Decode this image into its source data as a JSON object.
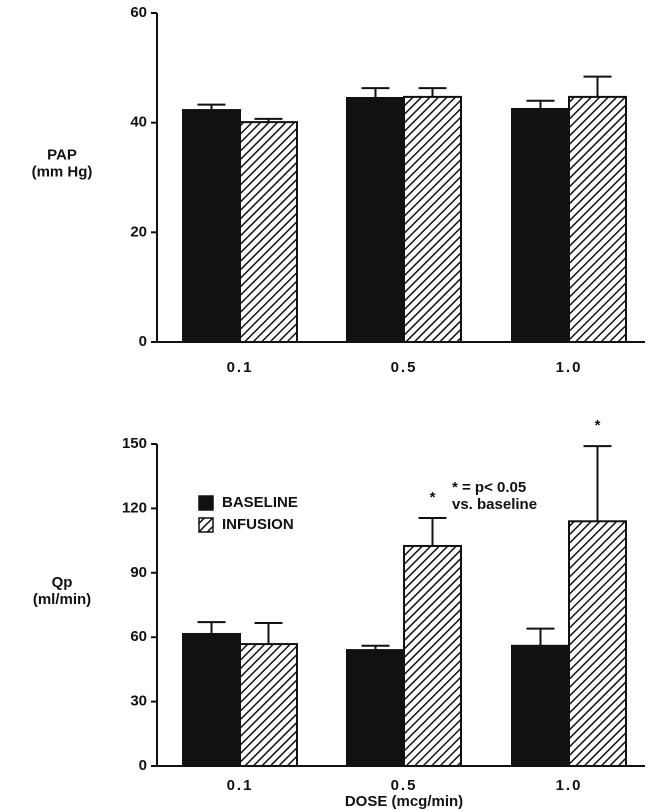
{
  "chart_data": [
    {
      "type": "bar",
      "ylabel": [
        "PAP",
        "(mm Hg)"
      ],
      "categories": [
        "0.1",
        "0.5",
        "1.0"
      ],
      "series": [
        {
          "color": "#111111",
          "fill": "solid",
          "values": [
            42.3,
            44.5,
            42.5
          ],
          "errors": [
            1.0,
            1.8,
            1.5
          ]
        },
        {
          "color": "#111111",
          "fill": "hatch",
          "values": [
            40.1,
            44.7,
            44.7
          ],
          "errors": [
            0.6,
            1.6,
            3.7
          ]
        }
      ],
      "ylim": [
        0,
        60
      ],
      "yticks": [
        0,
        20,
        40,
        60
      ],
      "legend": false
    },
    {
      "type": "bar",
      "ylabel": [
        "Qp",
        "(ml/min)"
      ],
      "xlabel": "DOSE (mcg/min)",
      "categories": [
        "0.1",
        "0.5",
        "1.0"
      ],
      "series": [
        {
          "name": "BASELINE",
          "color": "#111111",
          "fill": "solid",
          "values": [
            61.5,
            54,
            56
          ],
          "errors": [
            5.5,
            2,
            8
          ]
        },
        {
          "name": "INFUSION",
          "color": "#111111",
          "fill": "hatch",
          "values": [
            56.8,
            102.5,
            114
          ],
          "errors": [
            9.8,
            13,
            35
          ]
        }
      ],
      "ylim": [
        0,
        150
      ],
      "yticks": [
        0,
        30,
        60,
        90,
        120,
        150
      ],
      "significance": [
        {
          "category": 1,
          "text": "*"
        },
        {
          "category": 2,
          "text": "*"
        }
      ],
      "note": [
        "* = p< 0.05",
        "vs. baseline"
      ],
      "legend": "upper-left"
    }
  ]
}
